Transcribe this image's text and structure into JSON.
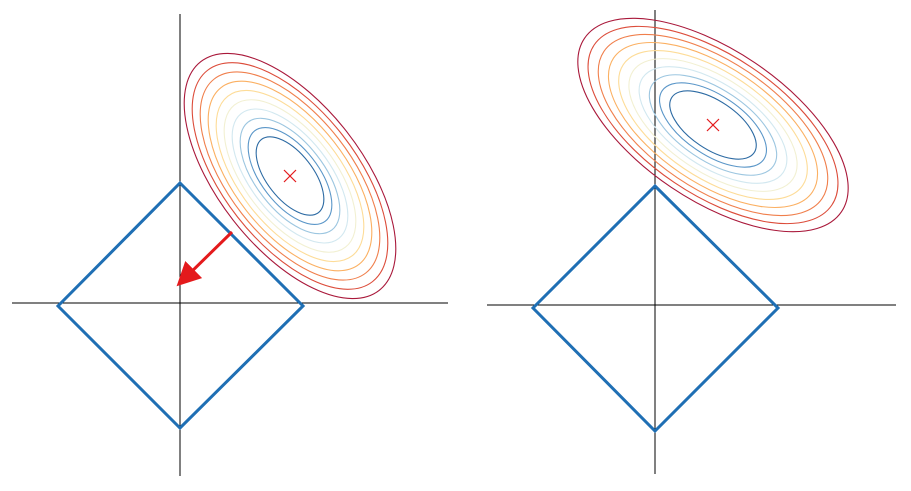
{
  "colors": {
    "axis": "#000000",
    "diamond": "#1f6fb4",
    "center_marker": "#e31a1c",
    "arrow": "#e41a1c",
    "contour_levels": [
      "#2c6aa3",
      "#5a96c8",
      "#9cc6e0",
      "#d2e8f0",
      "#f2f0d2",
      "#fddc98",
      "#fbb062",
      "#f07f4c",
      "#dc4c3a",
      "#a9183a"
    ]
  },
  "icons": {
    "center_marker": "cross-icon",
    "arrow": "arrow-icon"
  },
  "panels": [
    {
      "name": "left-panel",
      "has_arrow": true
    },
    {
      "name": "right-panel",
      "has_arrow": false
    }
  ]
}
